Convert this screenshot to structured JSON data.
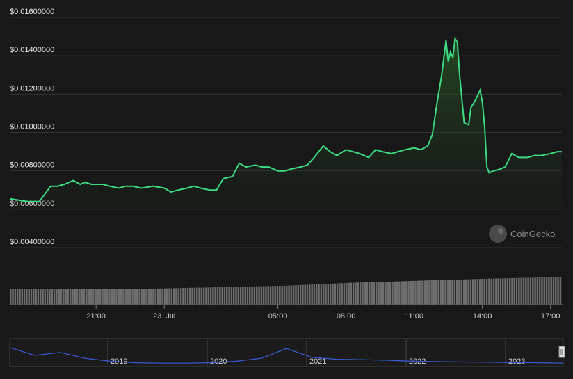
{
  "watermark": "CoinGecko",
  "colors": {
    "background": "#181818",
    "line": "#3ddc84",
    "grid": "#333333",
    "volume": "#6e6e6e",
    "navigator_line": "#3a5bd9"
  },
  "chart_data": {
    "type": "line",
    "title": "",
    "y_tick_labels": [
      "$0.01600000",
      "$0.01400000",
      "$0.01200000",
      "$0.01000000",
      "$0.00800000",
      "$0.00600000",
      "$0.00400000"
    ],
    "y_ticks": [
      0.016,
      0.014,
      0.012,
      0.01,
      0.008,
      0.006,
      0.004
    ],
    "ylim": [
      0.004,
      0.016
    ],
    "x_tick_labels": [
      "21:00",
      "23. Jul",
      "05:00",
      "08:00",
      "11:00",
      "14:00",
      "17:00"
    ],
    "x_ticks_hours": [
      21,
      24,
      29,
      32,
      35,
      38,
      41
    ],
    "xlim_hours": [
      17.2,
      41.5
    ],
    "grid": true,
    "series": [
      {
        "x_hours": [
          17.2,
          18.0,
          18.5,
          19.0,
          19.3,
          19.6,
          20.0,
          20.3,
          20.5,
          20.8,
          21.0,
          21.3,
          21.6,
          22.0,
          22.3,
          22.6,
          23.0,
          23.5,
          24.0,
          24.3,
          24.6,
          25.0,
          25.3,
          25.6,
          26.0,
          26.3,
          26.6,
          27.0,
          27.3,
          27.6,
          28.0,
          28.3,
          28.6,
          29.0,
          29.3,
          29.6,
          30.0,
          30.3,
          30.6,
          31.0,
          31.3,
          31.6,
          32.0,
          32.3,
          32.6,
          33.0,
          33.3,
          33.6,
          34.0,
          34.3,
          34.6,
          35.0,
          35.3,
          35.6,
          35.8,
          36.0,
          36.2,
          36.4,
          36.5,
          36.6,
          36.7,
          36.8,
          36.9,
          37.0,
          37.2,
          37.4,
          37.5,
          37.7,
          37.9,
          38.0,
          38.1,
          38.2,
          38.3,
          38.5,
          38.8,
          39.0,
          39.3,
          39.6,
          40.0,
          40.3,
          40.6,
          41.0,
          41.3,
          41.5
        ],
        "values": [
          0.00655,
          0.0064,
          0.0064,
          0.0072,
          0.0072,
          0.0073,
          0.0075,
          0.0073,
          0.0074,
          0.0073,
          0.0073,
          0.0073,
          0.0072,
          0.0071,
          0.0072,
          0.0072,
          0.0071,
          0.0072,
          0.0071,
          0.0069,
          0.007,
          0.0071,
          0.0072,
          0.0071,
          0.007,
          0.007,
          0.0076,
          0.0077,
          0.0084,
          0.0082,
          0.0083,
          0.0082,
          0.0082,
          0.008,
          0.008,
          0.0081,
          0.0082,
          0.0083,
          0.0087,
          0.0093,
          0.009,
          0.0088,
          0.0091,
          0.009,
          0.0089,
          0.0087,
          0.0091,
          0.009,
          0.0089,
          0.009,
          0.0091,
          0.0092,
          0.0091,
          0.0093,
          0.0099,
          0.0115,
          0.0129,
          0.0148,
          0.0137,
          0.0142,
          0.0139,
          0.0149,
          0.0147,
          0.013,
          0.0105,
          0.0104,
          0.0113,
          0.0117,
          0.0122,
          0.0116,
          0.0103,
          0.0082,
          0.0079,
          0.008,
          0.0081,
          0.0082,
          0.0089,
          0.0087,
          0.0087,
          0.0088,
          0.0088,
          0.0089,
          0.009,
          0.009
        ]
      }
    ],
    "volume": {
      "type": "bar",
      "description_values": "relative trading volume, rising from left to right",
      "values": [
        0.55,
        0.55,
        0.55,
        0.55,
        0.56,
        0.57,
        0.58,
        0.6,
        0.62,
        0.64,
        0.66,
        0.68,
        0.72,
        0.76,
        0.8,
        0.82,
        0.85,
        0.88,
        0.9,
        0.93,
        0.95,
        0.97,
        1.0
      ]
    },
    "navigator": {
      "x_tick_labels": [
        "2019",
        "2020",
        "2021",
        "2022",
        "2023"
      ],
      "values": [
        0.9,
        0.5,
        0.65,
        0.35,
        0.2,
        0.12,
        0.1,
        0.1,
        0.12,
        0.2,
        0.35,
        0.85,
        0.4,
        0.3,
        0.28,
        0.25,
        0.2,
        0.18,
        0.16,
        0.15,
        0.13,
        0.12,
        0.1
      ]
    }
  }
}
